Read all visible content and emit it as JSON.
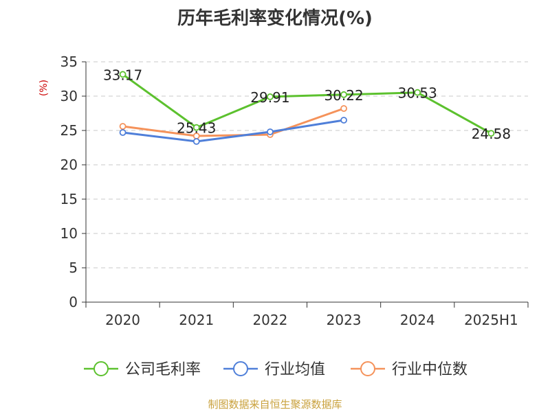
{
  "chart_data": {
    "type": "line",
    "title": "历年毛利率变化情况(%)",
    "unit_label": "(%)",
    "categories": [
      "2020",
      "2021",
      "2022",
      "2023",
      "2024",
      "2025H1"
    ],
    "ylim": [
      0,
      35
    ],
    "yticks": [
      0,
      5,
      10,
      15,
      20,
      25,
      30,
      35
    ],
    "grid": true,
    "legend_position": "bottom",
    "series": [
      {
        "name": "公司毛利率",
        "color": "#5cc12e",
        "values": [
          33.17,
          25.43,
          29.91,
          30.22,
          30.53,
          24.58
        ],
        "labels": [
          "33.17",
          "25.43",
          "29.91",
          "30.22",
          "30.53",
          "24.58"
        ]
      },
      {
        "name": "行业均值",
        "color": "#4f7fd9",
        "values": [
          24.7,
          23.4,
          24.8,
          26.5,
          null,
          null
        ]
      },
      {
        "name": "行业中位数",
        "color": "#f5925a",
        "values": [
          25.6,
          24.2,
          24.4,
          28.2,
          null,
          null
        ]
      }
    ]
  },
  "footer": "制图数据来自恒生聚源数据库"
}
